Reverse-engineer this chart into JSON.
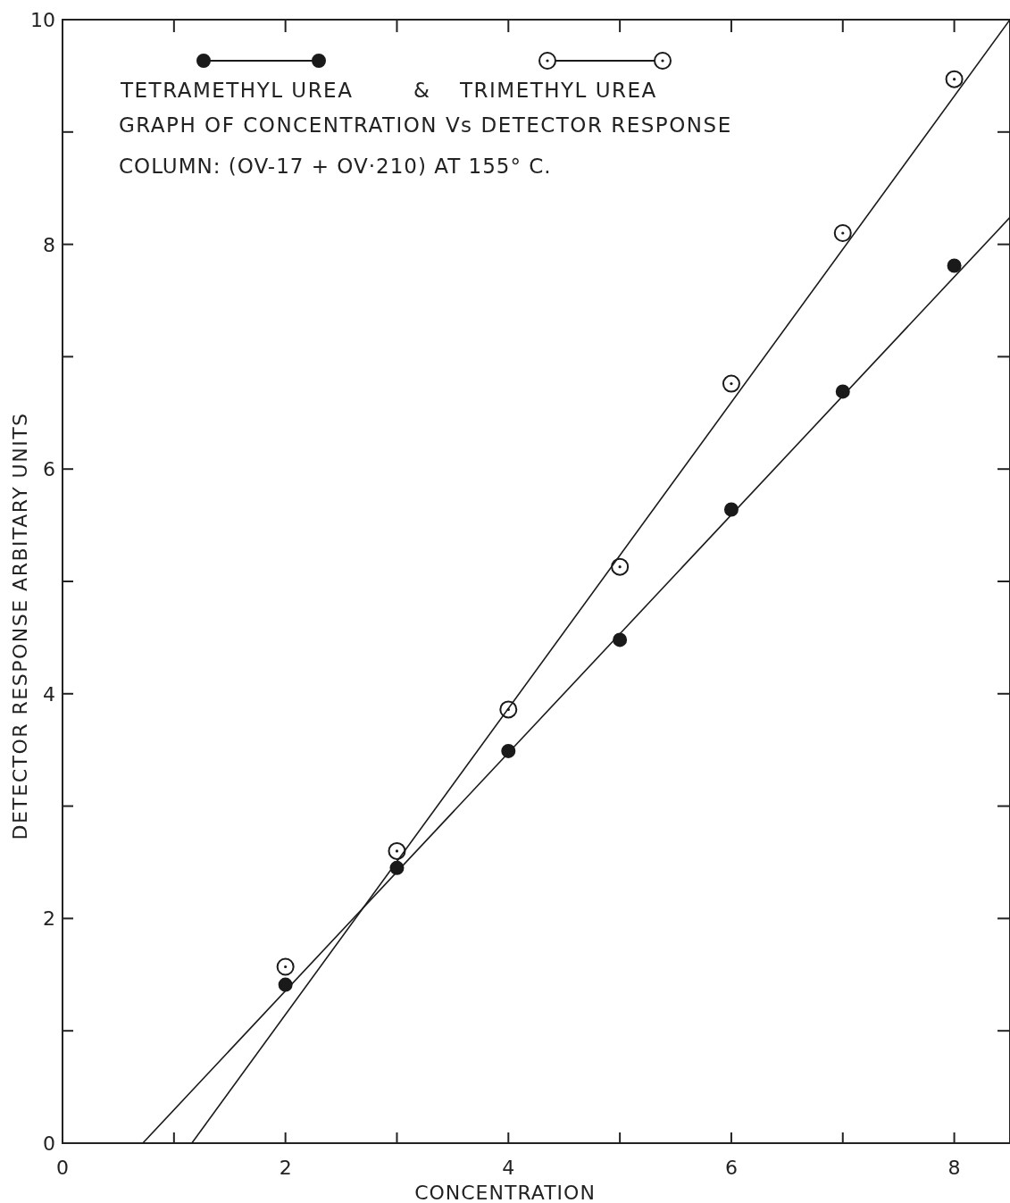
{
  "chart_data": {
    "type": "scatter",
    "title": "GRAPH OF CONCENTRATION Vs DETECTOR RESPONSE",
    "subtitle": "COLUMN: (OV-17 + OV·210) AT 155° C.",
    "xlabel": "CONCENTRATION",
    "ylabel": "DETECTOR RESPONSE ARBITARY UNITS",
    "annotations": [
      "&"
    ],
    "xlim": [
      0,
      8.5
    ],
    "ylim": [
      0,
      10
    ],
    "xticks": [
      0,
      {
        "value": 1,
        "label": null
      },
      2,
      {
        "value": 3,
        "label": null
      },
      4,
      {
        "value": 5,
        "label": null
      },
      6,
      {
        "value": 7,
        "label": null
      },
      8
    ],
    "yticks": [
      0,
      {
        "value": 1,
        "label": null
      },
      2,
      {
        "value": 3,
        "label": null
      },
      4,
      {
        "value": 5,
        "label": null
      },
      6,
      {
        "value": 7,
        "label": null
      },
      8,
      {
        "value": 9,
        "label": null
      },
      10
    ],
    "grid": false,
    "legend": "top left",
    "marker": "circle",
    "series": [
      {
        "name": "TETRAMETHYL UREA",
        "color": "#1a1a1a",
        "x": [
          2,
          3,
          4,
          5,
          6,
          7,
          8
        ],
        "values": [
          1.41,
          2.45,
          3.49,
          4.48,
          5.64,
          6.69,
          7.81
        ]
      },
      {
        "name": "TRIMETHYL UREA",
        "color": "#1a1a1a",
        "x": [
          2,
          3,
          4,
          5,
          6,
          7,
          8
        ],
        "values": [
          1.57,
          2.6,
          3.86,
          5.13,
          6.76,
          8.1,
          9.47
        ]
      },
      {
        "type": "line",
        "color": "#1a1a1a",
        "marker": "none",
        "x": [
          0.72,
          8.5
        ],
        "values": [
          0,
          8.24
        ]
      },
      {
        "type": "line",
        "color": "#1a1a1a",
        "marker": "none",
        "x": [
          1.16,
          8.5
        ],
        "values": [
          0,
          10
        ]
      }
    ]
  }
}
